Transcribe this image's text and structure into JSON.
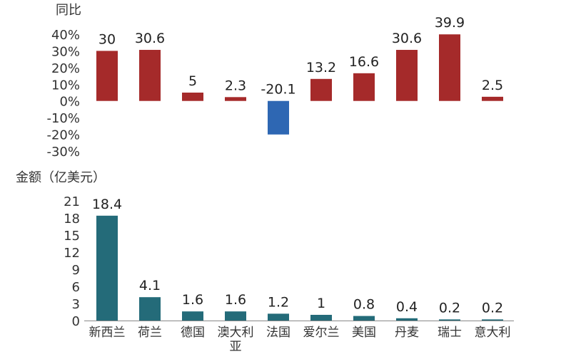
{
  "chart_data": [
    {
      "type": "bar",
      "ylabel": "同比",
      "categories": [
        "新西兰",
        "荷兰",
        "德国",
        "澳大利亚",
        "法国",
        "爱尔兰",
        "美国",
        "丹麦",
        "瑞士",
        "意大利"
      ],
      "values": [
        30,
        30.6,
        5,
        2.3,
        -20.1,
        13.2,
        16.6,
        30.6,
        39.9,
        2.5
      ],
      "yticks": [
        "40%",
        "30%",
        "20%",
        "10%",
        "0%",
        "-10%",
        "-20%",
        "-30%"
      ],
      "ylim": [
        -30,
        40
      ],
      "colors": {
        "positive": "#A52A2A",
        "negative": "#2E67B3"
      }
    },
    {
      "type": "bar",
      "ylabel": "金额（亿美元）",
      "categories": [
        "新西兰",
        "荷兰",
        "德国",
        "澳大利亚",
        "法国",
        "爱尔兰",
        "美国",
        "丹麦",
        "瑞士",
        "意大利"
      ],
      "values": [
        18.4,
        4.1,
        1.6,
        1.6,
        1.2,
        1,
        0.8,
        0.4,
        0.2,
        0.2
      ],
      "yticks": [
        "21",
        "18",
        "15",
        "12",
        "9",
        "6",
        "3",
        "0"
      ],
      "ylim": [
        0,
        21
      ],
      "colors": {
        "bar": "#246B79"
      }
    }
  ]
}
